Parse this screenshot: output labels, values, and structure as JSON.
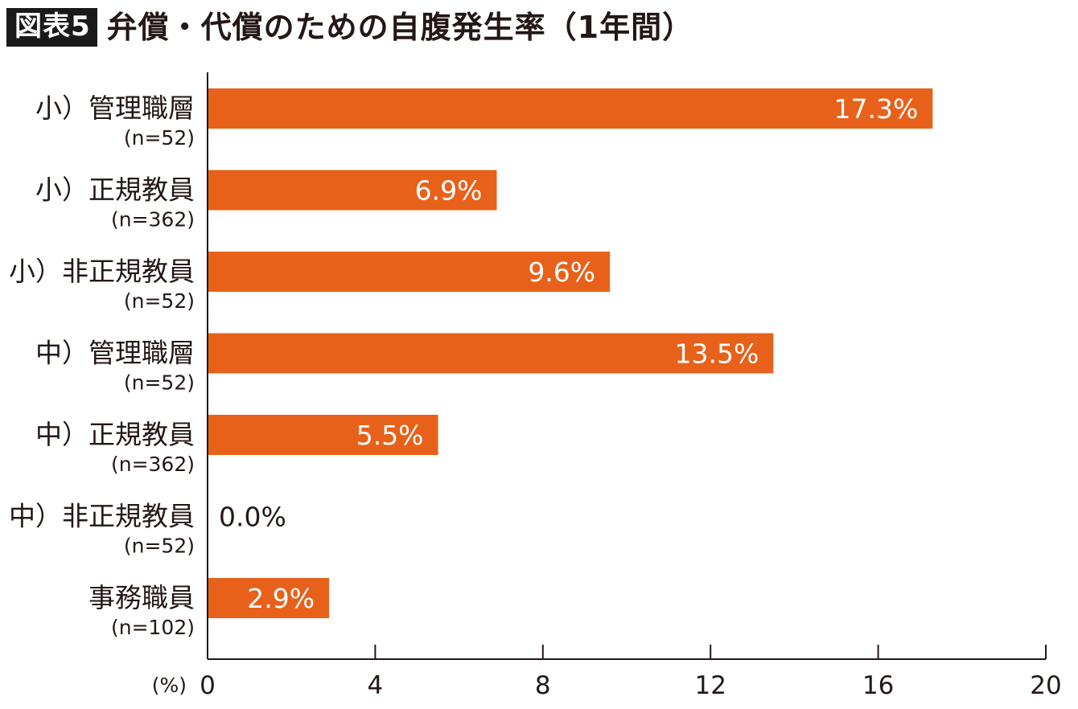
{
  "header": {
    "badge": "図表5",
    "title": "弁償・代償のための自腹発生率（1年間）"
  },
  "chart_data": {
    "type": "bar",
    "orientation": "horizontal",
    "categories": [
      {
        "label": "小）管理職層",
        "n": "(n=52)"
      },
      {
        "label": "小）正規教員",
        "n": "(n=362)"
      },
      {
        "label": "小）非正規教員",
        "n": "(n=52)"
      },
      {
        "label": "中）管理職層",
        "n": "(n=52)"
      },
      {
        "label": "中）正規教員",
        "n": "(n=362)"
      },
      {
        "label": "中）非正規教員",
        "n": "(n=52)"
      },
      {
        "label": "事務職員",
        "n": "(n=102)"
      }
    ],
    "values": [
      17.3,
      6.9,
      9.6,
      13.5,
      5.5,
      0.0,
      2.9
    ],
    "value_labels": [
      "17.3%",
      "6.9%",
      "9.6%",
      "13.5%",
      "5.5%",
      "0.0%",
      "2.9%"
    ],
    "x_unit": "(%)",
    "xlim": [
      0,
      20
    ],
    "x_ticks": [
      0,
      4,
      8,
      12,
      16,
      20
    ],
    "bar_color": "#e8611a",
    "grid": false,
    "legend": "none"
  }
}
